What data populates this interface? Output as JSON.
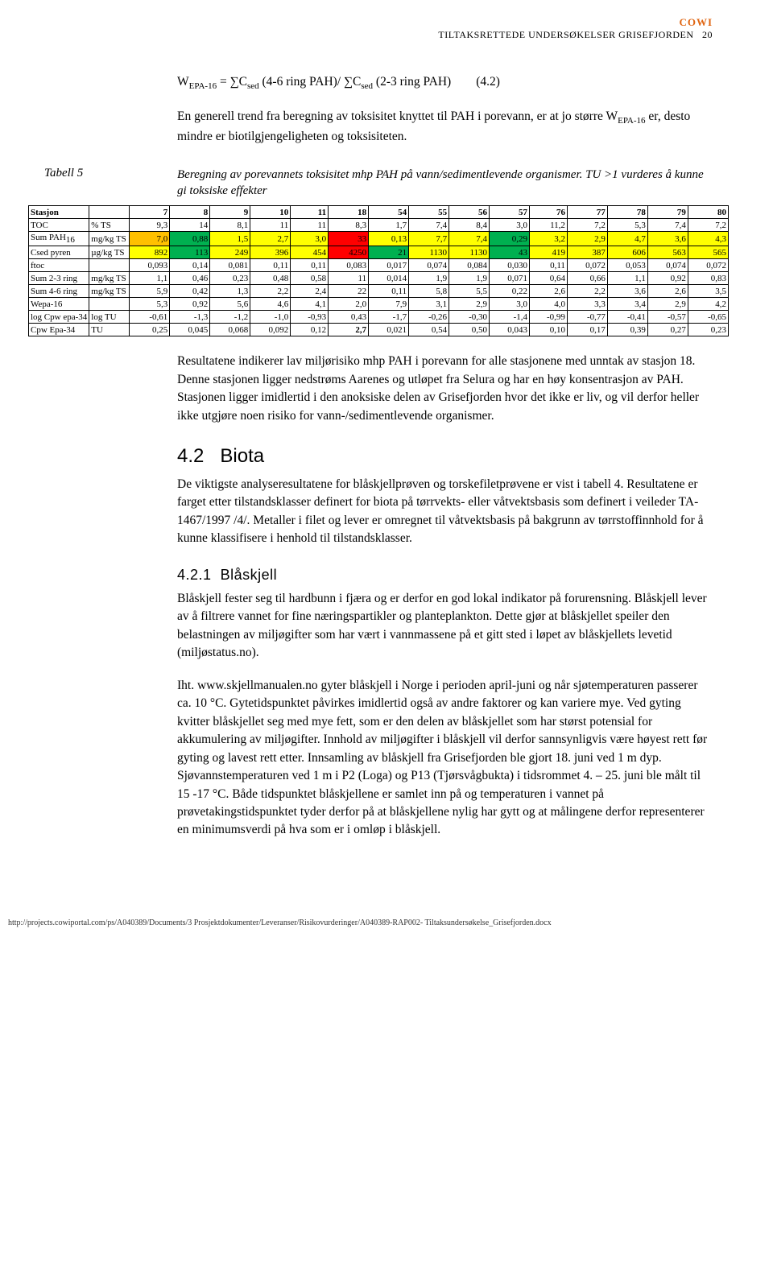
{
  "header": {
    "cowi": "COWI",
    "line": "TILTAKSRETTEDE UNDERSØKELSER GRISEFJORDEN",
    "pageno": "20"
  },
  "formula": "WEPA-16 = ∑Csed (4-6 ring PAH)/ ∑Csed (2-3 ring PAH)        (4.2)",
  "intro": "En generell trend fra beregning av toksisitet knyttet til PAH i porevann, er at jo større WEPA-16 er, desto mindre er biotilgjengeligheten og toksisiteten.",
  "tabell": {
    "label": "Tabell 5",
    "caption": "Beregning av porevannets toksisitet mhp PAH på vann/sedimentlevende organismer. TU >1 vurderes å kunne gi toksiske effekter"
  },
  "colors": {
    "yellow": "#ffff00",
    "green": "#00b050",
    "orange": "#ffc000",
    "red": "#ff0000"
  },
  "table": {
    "columns": [
      "Stasjon",
      "",
      "7",
      "8",
      "9",
      "10",
      "11",
      "18",
      "54",
      "55",
      "56",
      "57",
      "76",
      "77",
      "78",
      "79",
      "80"
    ],
    "rows": [
      {
        "label": "TOC",
        "unit": "% TS",
        "cells": [
          {
            "v": "9,3"
          },
          {
            "v": "14"
          },
          {
            "v": "8,1"
          },
          {
            "v": "11"
          },
          {
            "v": "11"
          },
          {
            "v": "8,3"
          },
          {
            "v": "1,7"
          },
          {
            "v": "7,4"
          },
          {
            "v": "8,4"
          },
          {
            "v": "3,0"
          },
          {
            "v": "11,2"
          },
          {
            "v": "7,2"
          },
          {
            "v": "5,3"
          },
          {
            "v": "7,4"
          },
          {
            "v": "7,2"
          }
        ]
      },
      {
        "label": "Sum PAH16",
        "unit": "mg/kg TS",
        "cells": [
          {
            "v": "7,0",
            "c": "orange"
          },
          {
            "v": "0,88",
            "c": "green"
          },
          {
            "v": "1,5",
            "c": "yellow"
          },
          {
            "v": "2,7",
            "c": "yellow"
          },
          {
            "v": "3,0",
            "c": "yellow"
          },
          {
            "v": "33",
            "c": "red"
          },
          {
            "v": "0,13",
            "c": "yellow"
          },
          {
            "v": "7,7",
            "c": "yellow"
          },
          {
            "v": "7,4",
            "c": "yellow"
          },
          {
            "v": "0,29",
            "c": "green"
          },
          {
            "v": "3,2",
            "c": "yellow"
          },
          {
            "v": "2,9",
            "c": "yellow"
          },
          {
            "v": "4,7",
            "c": "yellow"
          },
          {
            "v": "3,6",
            "c": "yellow"
          },
          {
            "v": "4,3",
            "c": "yellow"
          }
        ]
      },
      {
        "label": "Csed pyren",
        "unit": "µg/kg TS",
        "cells": [
          {
            "v": "892",
            "c": "yellow"
          },
          {
            "v": "113",
            "c": "green"
          },
          {
            "v": "249",
            "c": "yellow"
          },
          {
            "v": "396",
            "c": "yellow"
          },
          {
            "v": "454",
            "c": "yellow"
          },
          {
            "v": "4250",
            "c": "red"
          },
          {
            "v": "21",
            "c": "green"
          },
          {
            "v": "1130",
            "c": "yellow"
          },
          {
            "v": "1130",
            "c": "yellow"
          },
          {
            "v": "43",
            "c": "green"
          },
          {
            "v": "419",
            "c": "yellow"
          },
          {
            "v": "387",
            "c": "yellow"
          },
          {
            "v": "606",
            "c": "yellow"
          },
          {
            "v": "563",
            "c": "yellow"
          },
          {
            "v": "565",
            "c": "yellow"
          }
        ]
      },
      {
        "label": "ftoc",
        "unit": "",
        "cells": [
          {
            "v": "0,093"
          },
          {
            "v": "0,14"
          },
          {
            "v": "0,081"
          },
          {
            "v": "0,11"
          },
          {
            "v": "0,11"
          },
          {
            "v": "0,083"
          },
          {
            "v": "0,017"
          },
          {
            "v": "0,074"
          },
          {
            "v": "0,084"
          },
          {
            "v": "0,030"
          },
          {
            "v": "0,11"
          },
          {
            "v": "0,072"
          },
          {
            "v": "0,053"
          },
          {
            "v": "0,074"
          },
          {
            "v": "0,072"
          }
        ]
      },
      {
        "label": "Sum 2-3 ring",
        "unit": "mg/kg TS",
        "cells": [
          {
            "v": "1,1"
          },
          {
            "v": "0,46"
          },
          {
            "v": "0,23"
          },
          {
            "v": "0,48"
          },
          {
            "v": "0,58"
          },
          {
            "v": "11"
          },
          {
            "v": "0,014"
          },
          {
            "v": "1,9"
          },
          {
            "v": "1,9"
          },
          {
            "v": "0,071"
          },
          {
            "v": "0,64"
          },
          {
            "v": "0,66"
          },
          {
            "v": "1,1"
          },
          {
            "v": "0,92"
          },
          {
            "v": "0,83"
          }
        ]
      },
      {
        "label": "Sum 4-6 ring",
        "unit": "mg/kg TS",
        "cells": [
          {
            "v": "5,9"
          },
          {
            "v": "0,42"
          },
          {
            "v": "1,3"
          },
          {
            "v": "2,2"
          },
          {
            "v": "2,4"
          },
          {
            "v": "22"
          },
          {
            "v": "0,11"
          },
          {
            "v": "5,8"
          },
          {
            "v": "5,5"
          },
          {
            "v": "0,22"
          },
          {
            "v": "2,6"
          },
          {
            "v": "2,2"
          },
          {
            "v": "3,6"
          },
          {
            "v": "2,6"
          },
          {
            "v": "3,5"
          }
        ]
      },
      {
        "label": "Wepa-16",
        "unit": "",
        "cells": [
          {
            "v": "5,3"
          },
          {
            "v": "0,92"
          },
          {
            "v": "5,6"
          },
          {
            "v": "4,6"
          },
          {
            "v": "4,1"
          },
          {
            "v": "2,0"
          },
          {
            "v": "7,9"
          },
          {
            "v": "3,1"
          },
          {
            "v": "2,9"
          },
          {
            "v": "3,0"
          },
          {
            "v": "4,0"
          },
          {
            "v": "3,3"
          },
          {
            "v": "3,4"
          },
          {
            "v": "2,9"
          },
          {
            "v": "4,2"
          }
        ]
      },
      {
        "label": "log Cpw epa-34",
        "unit": "log TU",
        "cells": [
          {
            "v": "-0,61"
          },
          {
            "v": "-1,3"
          },
          {
            "v": "-1,2"
          },
          {
            "v": "-1,0"
          },
          {
            "v": "-0,93"
          },
          {
            "v": "0,43"
          },
          {
            "v": "-1,7"
          },
          {
            "v": "-0,26"
          },
          {
            "v": "-0,30"
          },
          {
            "v": "-1,4"
          },
          {
            "v": "-0,99"
          },
          {
            "v": "-0,77"
          },
          {
            "v": "-0,41"
          },
          {
            "v": "-0,57"
          },
          {
            "v": "-0,65"
          }
        ]
      },
      {
        "label": "Cpw Epa-34",
        "unit": "TU",
        "cells": [
          {
            "v": "0,25"
          },
          {
            "v": "0,045"
          },
          {
            "v": "0,068"
          },
          {
            "v": "0,092"
          },
          {
            "v": "0,12"
          },
          {
            "v": "2,7",
            "bold": true
          },
          {
            "v": "0,021"
          },
          {
            "v": "0,54"
          },
          {
            "v": "0,50"
          },
          {
            "v": "0,043"
          },
          {
            "v": "0,10"
          },
          {
            "v": "0,17"
          },
          {
            "v": "0,39"
          },
          {
            "v": "0,27"
          },
          {
            "v": "0,23"
          }
        ]
      }
    ]
  },
  "para_after_table": "Resultatene indikerer lav miljørisiko mhp PAH i porevann for alle stasjonene med unntak av stasjon 18. Denne stasjonen ligger nedstrøms Aarenes og utløpet fra Selura og har en høy konsentrasjon av PAH. Stasjonen ligger imidlertid i den anoksiske delen av Grisefjorden hvor det ikke er liv, og vil derfor heller ikke utgjøre noen risiko for vann-/sedimentlevende organismer.",
  "sec42": {
    "num": "4.2",
    "title": "Biota",
    "text": "De viktigste analyseresultatene for blåskjellprøven og torskefiletprøvene er vist i tabell 4. Resultatene er farget etter tilstandsklasser definert for biota på tørrvekts- eller våtvektsbasis som definert i veileder TA-1467/1997 /4/. Metaller i filet og lever er omregnet til våtvektsbasis på bakgrunn av tørrstoffinnhold for å kunne klassifisere i henhold til tilstandsklasser."
  },
  "sec421": {
    "num": "4.2.1",
    "title": "Blåskjell",
    "p1": "Blåskjell fester seg til hardbunn i fjæra og er derfor en god lokal indikator på forurensning. Blåskjell lever av å filtrere vannet for fine næringspartikler og planteplankton. Dette gjør at blåskjellet speiler den belastningen av miljøgifter som har vært i vannmassene på et gitt sted i løpet av blåskjellets levetid (miljøstatus.no).",
    "p2": "Iht. www.skjellmanualen.no gyter blåskjell i Norge i perioden april-juni og når sjøtemperaturen passerer ca. 10 °C. Gytetidspunktet påvirkes imidlertid også av andre faktorer og kan variere mye. Ved gyting kvitter blåskjellet seg med mye fett, som er den delen av blåskjellet som har størst potensial for akkumulering av miljøgifter. Innhold av miljøgifter i blåskjell vil derfor sannsynligvis være høyest rett før gyting og lavest rett etter. Innsamling av blåskjell fra Grisefjorden ble gjort 18. juni ved 1 m dyp. Sjøvannstemperaturen ved 1 m i P2 (Loga) og P13 (Tjørsvågbukta) i tidsrommet 4. – 25. juni ble målt til 15 -17 °C. Både tidspunktet blåskjellene er samlet inn på og temperaturen i vannet på prøvetakingstidspunktet tyder derfor på at blåskjellene nylig har gytt og at målingene derfor representerer en minimumsverdi på hva som er i omløp i blåskjell."
  },
  "footer": "http://projects.cowiportal.com/ps/A040389/Documents/3 Prosjektdokumenter/Leveranser/Risikovurderinger/A040389-RAP002- Tiltaksundersøkelse_Grisefjorden.docx"
}
